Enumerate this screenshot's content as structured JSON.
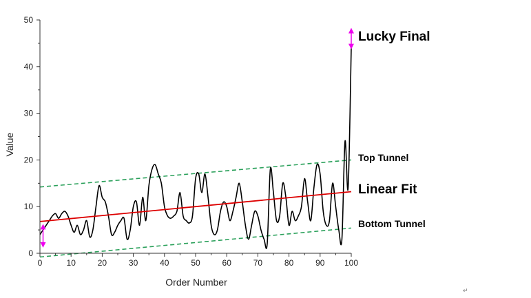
{
  "chart_data": {
    "type": "line",
    "title": "",
    "xlabel": "Order Number",
    "ylabel": "Value",
    "xlim": [
      0,
      100
    ],
    "ylim": [
      0,
      50
    ],
    "xticks": [
      0,
      10,
      20,
      30,
      40,
      50,
      60,
      70,
      80,
      90,
      100
    ],
    "yticks": [
      0,
      10,
      20,
      30,
      40,
      50
    ],
    "grid": false,
    "colors": {
      "data": "#000000",
      "fit": "#dd0000",
      "tunnel": "#2aa05a",
      "arrow": "#ee00ee"
    },
    "series": [
      {
        "x": [
          0,
          1,
          2,
          3,
          4,
          5,
          6,
          7,
          8,
          9,
          10,
          11,
          12,
          13,
          14,
          15,
          16,
          17,
          18,
          19,
          20,
          21,
          22,
          23,
          24,
          25,
          26,
          27,
          28,
          29,
          30,
          31,
          32,
          33,
          34,
          35,
          36,
          37,
          38,
          39,
          40,
          41,
          42,
          43,
          44,
          45,
          46,
          47,
          48,
          49,
          50,
          51,
          52,
          53,
          54,
          55,
          56,
          57,
          58,
          59,
          60,
          61,
          62,
          63,
          64,
          65,
          66,
          67,
          68,
          69,
          70,
          71,
          72,
          73,
          74,
          75,
          76,
          77,
          78,
          79,
          80,
          81,
          82,
          83,
          84,
          85,
          86,
          87,
          88,
          89,
          90,
          91,
          92,
          93,
          94,
          95,
          96,
          97,
          98,
          99,
          100
        ],
        "y": [
          4,
          5,
          6,
          7,
          8,
          8.5,
          7.5,
          8.5,
          9,
          8,
          6,
          4.5,
          6,
          4,
          5,
          7,
          3.5,
          5,
          10,
          14.5,
          12,
          11,
          8,
          4,
          4.5,
          6,
          7,
          7.5,
          3,
          5,
          10,
          11,
          6,
          12,
          7,
          14.5,
          18,
          19,
          17,
          15,
          10,
          8,
          7.5,
          8,
          9,
          13,
          8,
          7,
          6.5,
          8,
          16,
          17,
          13,
          17,
          12,
          6,
          4,
          5,
          9,
          11,
          10,
          7,
          9,
          12,
          15,
          11,
          6,
          3,
          6,
          9,
          8,
          5,
          3,
          2,
          18,
          13,
          7,
          8,
          15,
          12,
          6,
          9,
          7,
          8,
          10,
          16,
          11,
          7,
          14,
          19,
          17,
          9,
          6,
          7,
          15,
          10,
          5,
          3,
          24,
          14,
          44
        ]
      }
    ],
    "fit_line": {
      "x": [
        0,
        100
      ],
      "y": [
        6.8,
        13.2
      ]
    },
    "tunnel_top": {
      "x": [
        0,
        100
      ],
      "y": [
        14.2,
        20.0
      ]
    },
    "tunnel_bottom": {
      "x": [
        0,
        100
      ],
      "y": [
        -0.8,
        5.4
      ]
    },
    "arrows": [
      {
        "x": 1,
        "y_from": 6,
        "y_to": 1.5
      },
      {
        "x": 100,
        "y_from": 44,
        "y_to": 48
      }
    ],
    "annotations": {
      "lucky_final": "Lucky Final",
      "top_tunnel": "Top Tunnel",
      "linear_fit": "Linear Fit",
      "bottom_tunnel": "Bottom Tunnel"
    }
  },
  "corner_mark": "↵"
}
